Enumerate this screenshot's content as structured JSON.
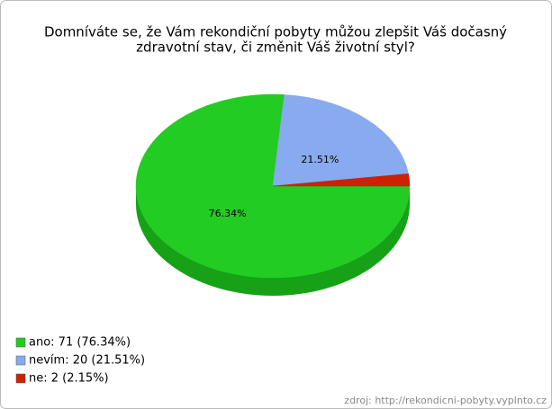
{
  "chart_data": {
    "type": "pie",
    "title": [
      "Domníváte se, že Vám rekondiční pobyty můžou zlepšit Váš dočasný",
      "zdravotní stav, či změnit Váš životní styl?"
    ],
    "legend_labels": [
      "ano: 71 (76.34%)",
      "nevím: 20 (21.51%)",
      "ne: 2 (2.15%)"
    ],
    "values": [
      76.34,
      21.51,
      2.15
    ],
    "value_labels": [
      "76.34%",
      "21.51%",
      null
    ],
    "colors": [
      "#22cc22",
      "#88aaee",
      "#cc2200"
    ],
    "side_colors": [
      "#17a117",
      "#6a88c8",
      "#991a00"
    ],
    "source": "zdroj: http://rekondicni-pobyty.vyplnto.cz"
  }
}
